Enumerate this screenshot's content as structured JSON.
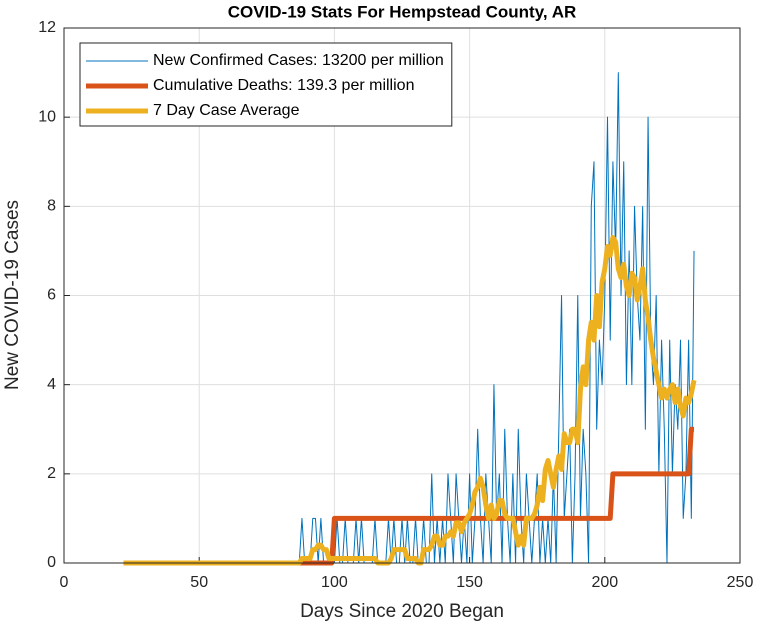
{
  "chart_data": {
    "type": "line",
    "title": "COVID-19 Stats For Hempstead County, AR",
    "xlabel": "Days Since 2020 Began",
    "ylabel": "New COVID-19 Cases",
    "xlim": [
      0,
      250
    ],
    "xticks": [
      0,
      50,
      100,
      150,
      200,
      250
    ],
    "ylim": [
      0,
      12
    ],
    "yticks": [
      0,
      2,
      4,
      6,
      8,
      10,
      12
    ],
    "grid": true,
    "legend": "upper left",
    "x": [
      22,
      23,
      24,
      25,
      26,
      27,
      28,
      29,
      30,
      31,
      32,
      33,
      34,
      35,
      36,
      37,
      38,
      39,
      40,
      41,
      42,
      43,
      44,
      45,
      46,
      47,
      48,
      49,
      50,
      51,
      52,
      53,
      54,
      55,
      56,
      57,
      58,
      59,
      60,
      61,
      62,
      63,
      64,
      65,
      66,
      67,
      68,
      69,
      70,
      71,
      72,
      73,
      74,
      75,
      76,
      77,
      78,
      79,
      80,
      81,
      82,
      83,
      84,
      85,
      86,
      87,
      88,
      89,
      90,
      91,
      92,
      93,
      94,
      95,
      96,
      97,
      98,
      99,
      100,
      101,
      102,
      103,
      104,
      105,
      106,
      107,
      108,
      109,
      110,
      111,
      112,
      113,
      114,
      115,
      116,
      117,
      118,
      119,
      120,
      121,
      122,
      123,
      124,
      125,
      126,
      127,
      128,
      129,
      130,
      131,
      132,
      133,
      134,
      135,
      136,
      137,
      138,
      139,
      140,
      141,
      142,
      143,
      144,
      145,
      146,
      147,
      148,
      149,
      150,
      151,
      152,
      153,
      154,
      155,
      156,
      157,
      158,
      159,
      160,
      161,
      162,
      163,
      164,
      165,
      166,
      167,
      168,
      169,
      170,
      171,
      172,
      173,
      174,
      175,
      176,
      177,
      178,
      179,
      180,
      181,
      182,
      183,
      184,
      185,
      186,
      187,
      188,
      189,
      190,
      191,
      192,
      193,
      194,
      195,
      196,
      197,
      198,
      199,
      200,
      201,
      202,
      203,
      204,
      205,
      206,
      207,
      208,
      209,
      210,
      211,
      212,
      213,
      214,
      215,
      216,
      217,
      218,
      219,
      220,
      221,
      222,
      223,
      224,
      225,
      226,
      227,
      228,
      229,
      230,
      231,
      232,
      233
    ],
    "series": [
      {
        "name": "New Confirmed Cases: 13200 per million",
        "color": "#0072bd",
        "width": 1,
        "values": [
          0,
          0,
          0,
          0,
          0,
          0,
          0,
          0,
          0,
          0,
          0,
          0,
          0,
          0,
          0,
          0,
          0,
          0,
          0,
          0,
          0,
          0,
          0,
          0,
          0,
          0,
          0,
          0,
          0,
          0,
          0,
          0,
          0,
          0,
          0,
          0,
          0,
          0,
          0,
          0,
          0,
          0,
          0,
          0,
          0,
          0,
          0,
          0,
          0,
          0,
          0,
          0,
          0,
          0,
          0,
          0,
          0,
          0,
          0,
          0,
          0,
          0,
          0,
          0,
          0,
          0,
          1,
          0,
          0,
          0,
          1,
          1,
          0,
          1,
          0,
          0,
          0,
          0,
          0,
          1,
          0,
          0,
          1,
          0,
          0,
          0,
          1,
          0,
          1,
          0,
          0,
          0,
          0,
          1,
          0,
          0,
          0,
          0,
          1,
          0,
          1,
          0,
          0,
          1,
          0,
          1,
          0,
          0,
          1,
          0,
          0,
          1,
          0,
          0,
          2,
          0,
          1,
          0,
          1,
          0,
          2,
          1,
          0,
          2,
          1,
          0,
          1,
          0,
          2,
          0,
          1,
          3,
          1,
          0,
          2,
          1,
          0,
          4,
          1,
          2,
          0,
          3,
          1,
          0,
          2,
          0,
          3,
          1,
          0,
          2,
          1,
          0,
          1,
          2,
          0,
          1,
          0,
          1,
          0,
          2,
          0,
          3,
          6,
          1,
          2,
          3,
          0,
          2,
          6,
          1,
          3,
          2,
          0,
          8,
          9,
          3,
          5,
          4,
          6,
          10,
          5,
          9,
          7,
          11,
          6,
          9,
          4,
          7,
          4,
          8,
          6,
          5,
          8,
          3,
          10,
          5,
          4,
          6,
          2,
          5,
          3,
          0,
          5,
          2,
          4,
          3,
          5,
          1,
          2,
          5,
          1,
          7
        ]
      },
      {
        "name": "Cumulative Deaths: 139.3 per million",
        "color": "#d95319",
        "width": 5,
        "values": [
          0,
          0,
          0,
          0,
          0,
          0,
          0,
          0,
          0,
          0,
          0,
          0,
          0,
          0,
          0,
          0,
          0,
          0,
          0,
          0,
          0,
          0,
          0,
          0,
          0,
          0,
          0,
          0,
          0,
          0,
          0,
          0,
          0,
          0,
          0,
          0,
          0,
          0,
          0,
          0,
          0,
          0,
          0,
          0,
          0,
          0,
          0,
          0,
          0,
          0,
          0,
          0,
          0,
          0,
          0,
          0,
          0,
          0,
          0,
          0,
          0,
          0,
          0,
          0,
          0,
          0,
          0,
          0,
          0,
          0,
          0,
          0,
          0,
          0,
          0,
          0,
          0,
          0,
          1,
          1,
          1,
          1,
          1,
          1,
          1,
          1,
          1,
          1,
          1,
          1,
          1,
          1,
          1,
          1,
          1,
          1,
          1,
          1,
          1,
          1,
          1,
          1,
          1,
          1,
          1,
          1,
          1,
          1,
          1,
          1,
          1,
          1,
          1,
          1,
          1,
          1,
          1,
          1,
          1,
          1,
          1,
          1,
          1,
          1,
          1,
          1,
          1,
          1,
          1,
          1,
          1,
          1,
          1,
          1,
          1,
          1,
          1,
          1,
          1,
          1,
          1,
          1,
          1,
          1,
          1,
          1,
          1,
          1,
          1,
          1,
          1,
          1,
          1,
          1,
          1,
          1,
          1,
          1,
          1,
          1,
          1,
          1,
          1,
          1,
          1,
          1,
          1,
          1,
          1,
          1,
          1,
          1,
          1,
          1,
          1,
          1,
          1,
          1,
          1,
          1,
          1,
          2,
          2,
          2,
          2,
          2,
          2,
          2,
          2,
          2,
          2,
          2,
          2,
          2,
          2,
          2,
          2,
          2,
          2,
          2,
          2,
          2,
          2,
          2,
          2,
          2,
          2,
          2,
          2,
          2,
          3,
          3
        ]
      },
      {
        "name": "7 Day Case Average",
        "color": "#edb120",
        "width": 5,
        "values": [
          0,
          0,
          0,
          0,
          0,
          0,
          0,
          0,
          0,
          0,
          0,
          0,
          0,
          0,
          0,
          0,
          0,
          0,
          0,
          0,
          0,
          0,
          0,
          0,
          0,
          0,
          0,
          0,
          0,
          0,
          0,
          0,
          0,
          0,
          0,
          0,
          0,
          0,
          0,
          0,
          0,
          0,
          0,
          0,
          0,
          0,
          0,
          0,
          0,
          0,
          0,
          0,
          0,
          0,
          0,
          0,
          0,
          0,
          0,
          0,
          0,
          0,
          0,
          0,
          0,
          0,
          0.1,
          0.1,
          0.1,
          0.1,
          0.3,
          0.3,
          0.4,
          0.4,
          0.3,
          0.3,
          0.1,
          0.1,
          0.1,
          0.1,
          0.1,
          0.1,
          0.1,
          0.1,
          0.1,
          0.1,
          0.1,
          0.1,
          0.1,
          0.1,
          0.1,
          0.1,
          0.1,
          0.1,
          0,
          0,
          0,
          0,
          0,
          0.1,
          0.3,
          0.3,
          0.3,
          0.3,
          0.3,
          0.1,
          0.1,
          0.1,
          0.1,
          0,
          0,
          0.3,
          0.3,
          0.3,
          0.4,
          0.6,
          0.6,
          0.4,
          0.4,
          0.6,
          0.6,
          0.7,
          0.6,
          0.9,
          0.9,
          0.7,
          0.9,
          1.0,
          1.1,
          1.3,
          1.6,
          1.7,
          1.9,
          1.7,
          1.3,
          1.0,
          1.3,
          1.0,
          1.1,
          1.4,
          1.4,
          1.1,
          1.0,
          1.0,
          1.0,
          0.7,
          0.4,
          0.6,
          0.4,
          1.0,
          1.0,
          1.0,
          1.1,
          1.3,
          1.7,
          1.4,
          2.1,
          2.3,
          2.0,
          1.7,
          2.1,
          2.4,
          2.1,
          2.9,
          2.7,
          2.7,
          3.0,
          3.0,
          2.7,
          3.9,
          4.4,
          4.0,
          5.0,
          5.4,
          5.0,
          6.0,
          5.3,
          6.3,
          6.6,
          7.1,
          6.9,
          7.3,
          7.2,
          6.6,
          6.4,
          6.7,
          6.2,
          6.0,
          6.5,
          6.4,
          5.9,
          6.2,
          6.6,
          5.9,
          5.5,
          5.0,
          4.6,
          4.3,
          4.0,
          3.7,
          3.9,
          3.7,
          3.9,
          4.0,
          3.6,
          3.9,
          3.5,
          3.3,
          3.7,
          3.6,
          3.8,
          4.1
        ]
      }
    ]
  }
}
